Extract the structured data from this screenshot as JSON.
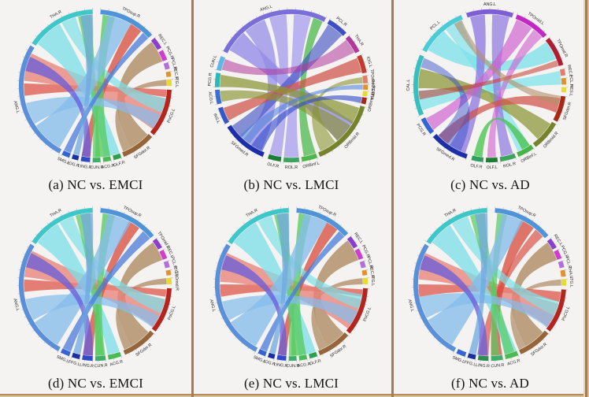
{
  "page": {
    "background": "#f4f3f1",
    "divider_color": "#a97b4f",
    "divider_light": "#d8c09a"
  },
  "chart_data": [
    {
      "type": "chord",
      "caption": "(a) NC vs. EMCI",
      "segments": [
        [
          "THA.R",
          "#3fc6c9",
          304,
          358
        ],
        [
          "TPOsup.R",
          "#4f94d8",
          4,
          48
        ],
        [
          "REC.L",
          "#8a3fd1",
          51,
          60
        ],
        [
          "PCG.R",
          "#cf3ecf",
          62,
          70
        ],
        [
          "PCL.R",
          "#b06fd9",
          72,
          77
        ],
        [
          "REC.R",
          "#e2912f",
          79,
          83
        ],
        [
          "ITG.L",
          "#ead92f",
          85,
          90
        ],
        [
          "PoCG.L",
          "#b3251e",
          93,
          130
        ],
        [
          "SFGdor.R",
          "#96663a",
          132,
          158
        ],
        [
          "OLF.R",
          "#2f9e4f",
          160,
          166
        ],
        [
          "ACG.R",
          "#4db856",
          168,
          174
        ],
        [
          "CUN.R",
          "#3fae6a",
          176,
          182
        ],
        [
          "LING.R",
          "#2f49c9",
          184,
          191
        ],
        [
          "IOG.R",
          "#1c2f9e",
          193,
          198
        ],
        [
          "SMG.L",
          "#3565d4",
          200,
          206
        ],
        [
          "ANG.L",
          "#5b8fd9",
          208,
          302
        ]
      ],
      "ribbons": [
        [
          133,
          150,
          52,
          70,
          "#b3906b",
          0.85
        ],
        [
          150,
          157,
          85,
          90,
          "#b3906b",
          0.8
        ],
        [
          93,
          99,
          262,
          272,
          "#e06055",
          0.8
        ],
        [
          100,
          127,
          274,
          297,
          "#e8837a",
          0.78
        ],
        [
          30,
          40,
          184,
          191,
          "#d94f43",
          0.78
        ],
        [
          306,
          330,
          160,
          173,
          "#7ddfe8",
          0.78
        ],
        [
          332,
          344,
          100,
          112,
          "#7ddfe8",
          0.7
        ],
        [
          6,
          16,
          168,
          180,
          "#57ca5f",
          0.78
        ],
        [
          346,
          357,
          176,
          182,
          "#57ca5f",
          0.72
        ],
        [
          10,
          30,
          210,
          236,
          "#85bdeb",
          0.78
        ],
        [
          238,
          256,
          114,
          126,
          "#85bdeb",
          0.72
        ],
        [
          184,
          191,
          282,
          294,
          "#6a5fd8",
          0.78
        ],
        [
          42,
          48,
          200,
          206,
          "#4a7bd9",
          0.75
        ],
        [
          348,
          358,
          193,
          198,
          "#6fa8e0",
          0.75
        ]
      ]
    },
    {
      "type": "chord",
      "caption": "(b) NC vs. LMCI",
      "segments": [
        [
          "ANG.L",
          "#7a6fd9",
          297,
          27
        ],
        [
          "PCL.R",
          "#3d4fc4",
          30,
          46
        ],
        [
          "THA.R",
          "#b0399b",
          49,
          63
        ],
        [
          "IOG.L",
          "#c23b2e",
          66,
          80
        ],
        [
          "TPOmid.R",
          "#e0806a",
          82,
          88
        ],
        [
          "PoCG.R",
          "#e2912f",
          89,
          93
        ],
        [
          "OLF.L",
          "#ead92f",
          94,
          98
        ],
        [
          "ORBmid.L",
          "#a8241c",
          99,
          104
        ],
        [
          "ORBmid.R",
          "#77832c",
          106,
          158
        ],
        [
          "ORBinf.L",
          "#4cb84c",
          160,
          172
        ],
        [
          "ROL.R",
          "#3da35d",
          174,
          186
        ],
        [
          "OLF.R",
          "#1e7d35",
          188,
          198
        ],
        [
          "SFGmed.R",
          "#1c2fa8",
          202,
          237
        ],
        [
          "INS.L",
          "#3757c9",
          240,
          253
        ],
        [
          "ACG.L",
          "#3b6fd4",
          256,
          267
        ],
        [
          "PCG.R",
          "#2fb8b8",
          269,
          280
        ],
        [
          "CUN.L",
          "#5fb6e8",
          282,
          293
        ]
      ],
      "ribbons": [
        [
          300,
          318,
          120,
          140,
          "#938ae8",
          0.78
        ],
        [
          320,
          338,
          205,
          222,
          "#938ae8",
          0.72
        ],
        [
          342,
          356,
          188,
          198,
          "#a79ded",
          0.78
        ],
        [
          2,
          16,
          174,
          186,
          "#a79ded",
          0.75
        ],
        [
          18,
          26,
          160,
          170,
          "#4cb84c",
          0.75
        ],
        [
          31,
          45,
          224,
          236,
          "#3d4fc4",
          0.62
        ],
        [
          50,
          62,
          283,
          292,
          "#b0399b",
          0.55
        ],
        [
          67,
          79,
          241,
          252,
          "#d05248",
          0.72
        ],
        [
          108,
          122,
          269,
          279,
          "#8a9433",
          0.72
        ],
        [
          124,
          140,
          257,
          266,
          "#8a9433",
          0.65
        ],
        [
          142,
          156,
          83,
          88,
          "#8a9433",
          0.6
        ],
        [
          204,
          214,
          99,
          104,
          "#2f49c9",
          0.6
        ],
        [
          216,
          226,
          89,
          93,
          "#4a7bd9",
          0.55
        ]
      ]
    },
    {
      "type": "chord",
      "caption": "(c) NC vs. AD",
      "segments": [
        [
          "ANG.L",
          "#7d5fd3",
          342,
          18
        ],
        [
          "TPOmid.L",
          "#c428c4",
          21,
          48
        ],
        [
          "TPOmid.R",
          "#b01c30",
          51,
          74
        ],
        [
          "REC.L",
          "#e0806a",
          77,
          82
        ],
        [
          "PCL.R",
          "#e2912f",
          84,
          89
        ],
        [
          "HES.L",
          "#ead92f",
          91,
          95
        ],
        [
          "SFGdor.R",
          "#a82818",
          98,
          118
        ],
        [
          "ORBmid.R",
          "#77832c",
          120,
          143
        ],
        [
          "ORBinf.L",
          "#46b446",
          145,
          158
        ],
        [
          "ROL.R",
          "#3da35d",
          160,
          172
        ],
        [
          "OLF.L",
          "#1e7d35",
          174,
          183
        ],
        [
          "OLF.R",
          "#2f9e5f",
          185,
          194
        ],
        [
          "SFGmed.R",
          "#1c2fa8",
          198,
          228
        ],
        [
          "PCG.R",
          "#3565d4",
          231,
          244
        ],
        [
          "CAL.L",
          "#38c0c0",
          247,
          294
        ],
        [
          "PCL.L",
          "#49ccd6",
          298,
          338
        ]
      ],
      "ribbons": [
        [
          300,
          320,
          52,
          68,
          "#7de2ea",
          0.78
        ],
        [
          322,
          336,
          146,
          157,
          "#7de2ea",
          0.68
        ],
        [
          250,
          266,
          78,
          89,
          "#7de2ea",
          0.72
        ],
        [
          268,
          284,
          122,
          138,
          "#8a9433",
          0.72
        ],
        [
          344,
          356,
          200,
          214,
          "#8f7ae0",
          0.78
        ],
        [
          2,
          16,
          161,
          171,
          "#8f7ae0",
          0.72
        ],
        [
          22,
          36,
          232,
          243,
          "#cf5ecf",
          0.68
        ],
        [
          38,
          47,
          175,
          182,
          "#cf5ecf",
          0.6
        ],
        [
          100,
          112,
          216,
          226,
          "#d05248",
          0.72
        ],
        [
          146,
          153,
          186,
          193,
          "#4cc453",
          0.8
        ],
        [
          69,
          74,
          259,
          266,
          "#c23b2e",
          0.55
        ],
        [
          98,
          106,
          330,
          337,
          "#b3906b",
          0.6
        ],
        [
          204,
          226,
          285,
          293,
          "#2f49c9",
          0.45
        ]
      ]
    },
    {
      "type": "chord",
      "caption": "(d) NC vs. EMCI",
      "segments": [
        [
          "THA.R",
          "#3fc6c9",
          304,
          358
        ],
        [
          "TPOsup.R",
          "#4f94d8",
          4,
          50
        ],
        [
          "TPOmid.L",
          "#8a3fd1",
          53,
          61
        ],
        [
          "REC.L",
          "#cf3ecf",
          63,
          70
        ],
        [
          "PCL.R",
          "#b06fd9",
          72,
          77
        ],
        [
          "ITG.L",
          "#e2912f",
          79,
          83
        ],
        [
          "TPOmid.R",
          "#ead92f",
          85,
          90
        ],
        [
          "PoCG.L",
          "#b3251e",
          93,
          128
        ],
        [
          "SFGdor.R",
          "#96663a",
          130,
          157
        ],
        [
          "ACG.R",
          "#4db856",
          160,
          170
        ],
        [
          "CUN.R",
          "#3fae6a",
          172,
          180
        ],
        [
          "LING.R",
          "#2f49c9",
          182,
          190
        ],
        [
          "FFG.L",
          "#1c2f9e",
          192,
          198
        ],
        [
          "SMG.L",
          "#3565d4",
          200,
          207
        ],
        [
          "ANG.L",
          "#5b8fd9",
          209,
          302
        ]
      ],
      "ribbons": [
        [
          132,
          150,
          54,
          70,
          "#b3906b",
          0.85
        ],
        [
          150,
          156,
          85,
          90,
          "#b3906b",
          0.8
        ],
        [
          94,
          100,
          264,
          274,
          "#e06055",
          0.8
        ],
        [
          102,
          126,
          276,
          298,
          "#e8837a",
          0.78
        ],
        [
          28,
          38,
          182,
          190,
          "#d94f43",
          0.78
        ],
        [
          306,
          328,
          160,
          170,
          "#7ddfe8",
          0.78
        ],
        [
          330,
          342,
          102,
          114,
          "#7ddfe8",
          0.7
        ],
        [
          6,
          16,
          172,
          180,
          "#57ca5f",
          0.78
        ],
        [
          344,
          356,
          173,
          180,
          "#57ca5f",
          0.7
        ],
        [
          10,
          30,
          212,
          238,
          "#85bdeb",
          0.78
        ],
        [
          240,
          258,
          116,
          127,
          "#85bdeb",
          0.72
        ],
        [
          182,
          190,
          284,
          296,
          "#6a5fd8",
          0.78
        ],
        [
          42,
          50,
          200,
          207,
          "#4a7bd9",
          0.75
        ],
        [
          348,
          358,
          192,
          198,
          "#6fa8e0",
          0.75
        ]
      ]
    },
    {
      "type": "chord",
      "caption": "(e) NC vs. LMCI",
      "segments": [
        [
          "THA.R",
          "#3fc6c9",
          304,
          358
        ],
        [
          "TPOsup.R",
          "#4f94d8",
          4,
          48
        ],
        [
          "REC.L",
          "#8a3fd1",
          51,
          60
        ],
        [
          "PCG.R",
          "#cf3ecf",
          62,
          70
        ],
        [
          "PCL.R",
          "#b06fd9",
          72,
          77
        ],
        [
          "REC.R",
          "#e2912f",
          79,
          83
        ],
        [
          "ITG.L",
          "#ead92f",
          85,
          90
        ],
        [
          "PoCG.L",
          "#b3251e",
          93,
          130
        ],
        [
          "SFGdor.R",
          "#96663a",
          132,
          158
        ],
        [
          "OLF.R",
          "#2f9e4f",
          160,
          166
        ],
        [
          "ACG.R",
          "#4db856",
          168,
          174
        ],
        [
          "CUN.R",
          "#3fae6a",
          176,
          182
        ],
        [
          "LING.R",
          "#2f49c9",
          184,
          191
        ],
        [
          "IOG.R",
          "#1c2f9e",
          193,
          198
        ],
        [
          "SMG.L",
          "#3565d4",
          200,
          206
        ],
        [
          "ANG.L",
          "#5b8fd9",
          208,
          302
        ]
      ],
      "ribbons": [
        [
          133,
          150,
          52,
          70,
          "#b3906b",
          0.85
        ],
        [
          150,
          157,
          85,
          90,
          "#b3906b",
          0.8
        ],
        [
          94,
          100,
          260,
          270,
          "#e06055",
          0.8
        ],
        [
          102,
          128,
          272,
          296,
          "#e8837a",
          0.78
        ],
        [
          30,
          40,
          184,
          191,
          "#d94f43",
          0.78
        ],
        [
          306,
          330,
          160,
          174,
          "#7ddfe8",
          0.78
        ],
        [
          332,
          344,
          98,
          110,
          "#7ddfe8",
          0.7
        ],
        [
          6,
          16,
          168,
          180,
          "#57ca5f",
          0.78
        ],
        [
          346,
          357,
          176,
          182,
          "#57ca5f",
          0.72
        ],
        [
          10,
          30,
          210,
          238,
          "#85bdeb",
          0.78
        ],
        [
          240,
          256,
          112,
          124,
          "#85bdeb",
          0.72
        ],
        [
          184,
          191,
          282,
          294,
          "#6a5fd8",
          0.78
        ],
        [
          42,
          48,
          200,
          206,
          "#4a7bd9",
          0.75
        ],
        [
          348,
          358,
          193,
          198,
          "#6fa8e0",
          0.75
        ]
      ]
    },
    {
      "type": "chord",
      "caption": "(f) NC vs. AD",
      "segments": [
        [
          "THA.R",
          "#3fc6c9",
          304,
          358
        ],
        [
          "TPOsup.R",
          "#4f94d8",
          4,
          50
        ],
        [
          "REC.L",
          "#8a3fd1",
          53,
          61
        ],
        [
          "PCG.R",
          "#cf3ecf",
          63,
          70
        ],
        [
          "PCL.R",
          "#b06fd9",
          72,
          77
        ],
        [
          "THA.L",
          "#e2912f",
          79,
          84
        ],
        [
          "ITG.L",
          "#ead92f",
          86,
          91
        ],
        [
          "PoCG.L",
          "#b3251e",
          94,
          128
        ],
        [
          "SFGdor.R",
          "#96663a",
          130,
          156
        ],
        [
          "ACG.R",
          "#4db856",
          158,
          168
        ],
        [
          "CUN.R",
          "#3fae6a",
          170,
          179
        ],
        [
          "LING.R",
          "#2f8e4f",
          181,
          189
        ],
        [
          "FFG.L",
          "#1c2f9e",
          191,
          197
        ],
        [
          "SMG.L",
          "#3565d4",
          199,
          206
        ],
        [
          "ANG.L",
          "#5b8fd9",
          208,
          302
        ]
      ],
      "ribbons": [
        [
          132,
          150,
          54,
          70,
          "#b3906b",
          0.85
        ],
        [
          150,
          156,
          86,
          91,
          "#b3906b",
          0.75
        ],
        [
          96,
          104,
          260,
          270,
          "#e06055",
          0.8
        ],
        [
          106,
          126,
          274,
          296,
          "#e8837a",
          0.78
        ],
        [
          26,
          38,
          170,
          179,
          "#d94f43",
          0.78
        ],
        [
          40,
          48,
          181,
          189,
          "#d94f43",
          0.68
        ],
        [
          306,
          326,
          158,
          168,
          "#7ddfe8",
          0.78
        ],
        [
          328,
          342,
          104,
          116,
          "#7ddfe8",
          0.7
        ],
        [
          6,
          14,
          172,
          179,
          "#57ca5f",
          0.7
        ],
        [
          344,
          356,
          160,
          168,
          "#57ca5f",
          0.7
        ],
        [
          10,
          28,
          212,
          240,
          "#85bdeb",
          0.78
        ],
        [
          242,
          260,
          116,
          127,
          "#85bdeb",
          0.72
        ],
        [
          182,
          190,
          282,
          294,
          "#6a5fd8",
          0.78
        ],
        [
          348,
          358,
          191,
          197,
          "#6fa8e0",
          0.75
        ]
      ]
    }
  ]
}
